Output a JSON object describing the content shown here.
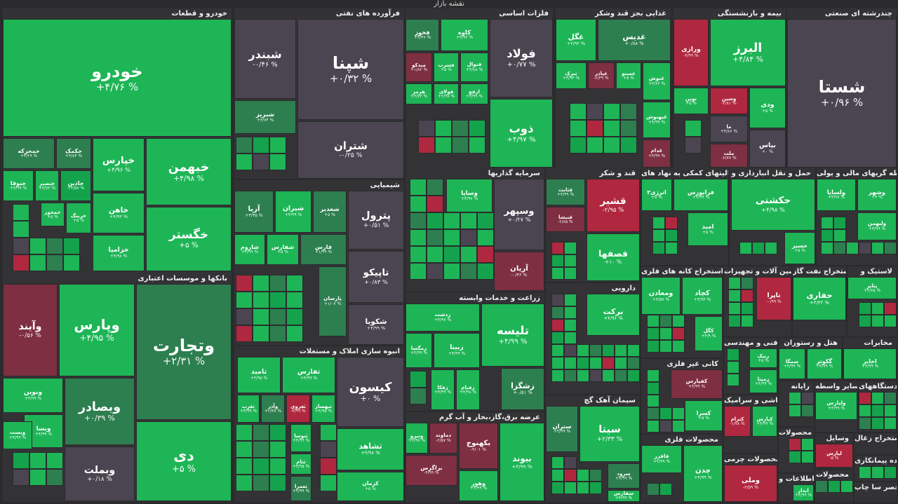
{
  "page_title": "نقشه بازار",
  "colors": {
    "up": "#1eb556",
    "up_dark": "#2d7f4f",
    "neutral": "#4a4550",
    "down": "#b0283f"
  },
  "sectors": [
    {
      "id": "s1",
      "name": "خودرو و قطعات",
      "tiles": [
        {
          "name": "خودرو",
          "value": "+۴/۷۶ %"
        },
        {
          "name": "خبهمن",
          "value": "+۴/۹۸ %"
        },
        {
          "name": "خگستر",
          "value": "+۵ %"
        },
        {
          "name": "خپارس",
          "value": "+۴/۹۶ %"
        },
        {
          "name": "خکمک",
          "value": "+۳/۸۳ %"
        },
        {
          "name": "خمحرکه",
          "value": "+۴/۲۹ %"
        },
        {
          "name": "خاهن",
          "value": "+۴/۹۲ %"
        },
        {
          "name": "خاذین",
          "value": "+۴/۵۷ %"
        },
        {
          "name": "خنصیر",
          "value": "+۳/۷۳ %"
        },
        {
          "name": "خنوقا",
          "value": "+۴/۹۹ %"
        },
        {
          "name": "خرینگ",
          "value": "+۵ %"
        },
        {
          "name": "خمحور",
          "value": "+۵ %"
        },
        {
          "name": "خزامیا",
          "value": "+۴/۹۸ %"
        }
      ]
    },
    {
      "id": "s2",
      "name": "فرآورده های نفتی",
      "tiles": [
        {
          "name": "شپنا",
          "value": "+۰/۳۲ %"
        },
        {
          "name": "شبندر",
          "value": "-۰/۴۶ %"
        },
        {
          "name": "شتران",
          "value": "-۰/۲۵ %"
        },
        {
          "name": "شبریز",
          "value": "+۳/۷۴ %"
        }
      ]
    },
    {
      "id": "s3",
      "name": "فلزات اساسی",
      "tiles": [
        {
          "name": "فولاد",
          "value": "+۰/۷۷ %"
        },
        {
          "name": "کاوه",
          "value": "+۴/۹۳ %"
        },
        {
          "name": "فخوز",
          "value": "+۳/۴۷ %"
        },
        {
          "name": "فنوال",
          "value": "+۴/۸۸ %"
        },
        {
          "name": "فسرب",
          "value": "+۵ %"
        },
        {
          "name": "میدکو",
          "value": "+۱/۸۲ %"
        },
        {
          "name": "ارفع",
          "value": "+۴/۹۹ %"
        },
        {
          "name": "فولای",
          "value": "+۲/۹۷ %"
        },
        {
          "name": "هرمز",
          "value": "+۳/۷۳ %"
        },
        {
          "name": "ذوب",
          "value": "+۴/۹۷ %"
        }
      ]
    },
    {
      "id": "s4",
      "name": "غذایی بجز قند وشکر",
      "tiles": [
        {
          "name": "غدیس",
          "value": "+۰/۸۸ %"
        },
        {
          "name": "غگل",
          "value": "+۲/۹۲ %"
        },
        {
          "name": "غنوش",
          "value": "+۴/۶۶ %"
        },
        {
          "name": "غمینو",
          "value": "+۵ %"
        },
        {
          "name": "غپاذر",
          "value": "-۲/۳۹ %"
        },
        {
          "name": "تبرک",
          "value": "+۴/۹۳ %"
        },
        {
          "name": "غبهنوش",
          "value": "+۴/۹۹ %"
        },
        {
          "name": "غدام",
          "value": "+۴/۹۹ %"
        }
      ]
    },
    {
      "id": "s5",
      "name": "بیمه و بازنشستگی",
      "tiles": [
        {
          "name": "البرز",
          "value": "+۴/۸۴ %"
        },
        {
          "name": "ورازی",
          "value": "-۳/۹۹ %"
        },
        {
          "name": "ودی",
          "value": "+۵ %"
        },
        {
          "name": "وسین",
          "value": "-۲/۸۱ %"
        },
        {
          "name": "نوین",
          "value": "+۵ %"
        },
        {
          "name": "ما",
          "value": "+۴/۸۶ %"
        },
        {
          "name": "بپاس",
          "value": "+۰ %"
        },
        {
          "name": "ملت",
          "value": "-۲/۷۷ %"
        }
      ]
    },
    {
      "id": "s6",
      "name": "چندرشته ای صنعتی",
      "tiles": [
        {
          "name": "شستا",
          "value": "+۰/۹۶ %"
        }
      ]
    },
    {
      "id": "s7",
      "name": "شیمیایی",
      "tiles": [
        {
          "name": "پترول",
          "value": "+۰/۵۱ %"
        },
        {
          "name": "شغدیر",
          "value": "+۵ %"
        },
        {
          "name": "شیران",
          "value": "+۴/۹۹ %"
        },
        {
          "name": "آریا",
          "value": "+۳/۳۵ %"
        },
        {
          "name": "تاپیکو",
          "value": "+۰/۸۳ %"
        },
        {
          "name": "فارس",
          "value": "+۱/۹۹ %"
        },
        {
          "name": "شفارس",
          "value": "+۵ %"
        },
        {
          "name": "شاروم",
          "value": "+۴/۹۹ %"
        },
        {
          "name": "پارسان",
          "value": "+۱/۰۷ %"
        },
        {
          "name": "شکویا",
          "value": "+۴/۹۹ %"
        }
      ]
    },
    {
      "id": "s8",
      "name": "سرمایه گذاریها",
      "tiles": [
        {
          "name": "وسپهر",
          "value": "+۰/۲۷ %"
        },
        {
          "name": "وساپا",
          "value": "+۴/۹۷ %"
        },
        {
          "name": "آریان",
          "value": "-۰/۳۶ %"
        }
      ]
    },
    {
      "id": "s9",
      "name": "قند و شکر",
      "tiles": [
        {
          "name": "قشیر",
          "value": "-۲/۹۵ %"
        },
        {
          "name": "قثابت",
          "value": "+۴/۹۹ %"
        },
        {
          "name": "قنیشا",
          "value": "-۲/۸۵ %"
        },
        {
          "name": "قصفها",
          "value": "+۱۰ %"
        }
      ]
    },
    {
      "id": "s10",
      "name": "فعالیتهای کمکی به نهاد های",
      "tiles": [
        {
          "name": "فرابورس",
          "value": "+۴/۹۹ %"
        },
        {
          "name": "انرژی۳",
          "value": "+۵ %"
        },
        {
          "name": "امید",
          "value": "+۵ %"
        }
      ]
    },
    {
      "id": "s11",
      "name": "حمل و نقل انبارداری و",
      "tiles": [
        {
          "name": "حکشتی",
          "value": "+۴/۹۸ %"
        },
        {
          "name": "حسیر",
          "value": "+۵ %"
        }
      ]
    },
    {
      "id": "s12",
      "name": "واسطه گریهای مالی و پولی",
      "tiles": [
        {
          "name": "وشهر",
          "value": "+۴ %"
        },
        {
          "name": "ولساپا",
          "value": "+۴/۹۷ %"
        },
        {
          "name": "ولبهمن",
          "value": "+۴/۹۹ %"
        }
      ]
    },
    {
      "id": "s13",
      "name": "بانکها و موسسات اعتباری",
      "tiles": [
        {
          "name": "وتجارت",
          "value": "+۲/۳۱ %"
        },
        {
          "name": "وپارس",
          "value": "+۴/۹۵ %"
        },
        {
          "name": "وآیند",
          "value": "-۰/۵۶ %"
        },
        {
          "name": "دی",
          "value": "+۵ %"
        },
        {
          "name": "وبصادر",
          "value": "+۰/۳۹ %"
        },
        {
          "name": "ونوین",
          "value": "+۴/۹۹ %"
        },
        {
          "name": "ویسا",
          "value": "+۴/۹۹ %"
        },
        {
          "name": "وبست",
          "value": "+۴/۹۹ %"
        },
        {
          "name": "وبملت",
          "value": "+۰/۱۸ %"
        }
      ]
    },
    {
      "id": "s14",
      "name": "انبوه سازی املاک و مستغلات",
      "tiles": [
        {
          "name": "کیسون",
          "value": "+۰ %"
        },
        {
          "name": "ثفارس",
          "value": "+۴/۹۹ %"
        },
        {
          "name": "ثامید",
          "value": "+۴/۹۵ %"
        },
        {
          "name": "ثبهساز",
          "value": "+۴/۹۵ %"
        },
        {
          "name": "ثغروی",
          "value": "-۳/۹۹ %"
        },
        {
          "name": "وآذر",
          "value": "+۲/۳۸ %"
        },
        {
          "name": "ثغرب",
          "value": "+۴/۹۹ %"
        },
        {
          "name": "ثشاهد",
          "value": "+۴/۹۸ %"
        },
        {
          "name": "ثنوسا",
          "value": "+۴/۹۹ %"
        },
        {
          "name": "ثتام",
          "value": "+۴/۹۵ %"
        },
        {
          "name": "ثعمرا",
          "value": "+۴/۹۹ %"
        },
        {
          "name": "کرمان",
          "value": "+۵ %"
        }
      ]
    },
    {
      "id": "s15",
      "name": "زراعت و خدمات وابسته",
      "tiles": [
        {
          "name": "تلیسه",
          "value": "+۴/۹۹ %"
        },
        {
          "name": "زدشت",
          "value": "+۴/۹۷ %"
        },
        {
          "name": "زبینا",
          "value": "+۴/۹۹ %"
        },
        {
          "name": "زمگسا",
          "value": "+۴/۹۹ %"
        },
        {
          "name": "زشگزا",
          "value": "+۰/۵۱ %"
        },
        {
          "name": "زقیام",
          "value": "+۴/۹۸ %"
        },
        {
          "name": "زفکا",
          "value": "+۴/۹۹ %"
        }
      ]
    },
    {
      "id": "s16",
      "name": "عرضه برق،گاز،بخار و آب گرم",
      "tiles": [
        {
          "name": "بیوند",
          "value": "+۴/۹۹ %"
        },
        {
          "name": "بکهنوج",
          "value": "-۲/۰۱ %"
        },
        {
          "name": "دماوند",
          "value": "-۲/۵۷ %"
        },
        {
          "name": "ونیرو",
          "value": "+۴/۹۷ %"
        },
        {
          "name": "بزاگرس",
          "value": "-۴/۹۹ %"
        },
        {
          "name": "وهور",
          "value": "+۴/۹۹ %"
        }
      ]
    },
    {
      "id": "s17",
      "name": "دارویی",
      "tiles": [
        {
          "name": "برکت",
          "value": "+۴/۹۶ %"
        }
      ]
    },
    {
      "id": "s18",
      "name": "سیمان آهک گچ",
      "tiles": [
        {
          "name": "سیتا",
          "value": "+۲/۳۳ %"
        },
        {
          "name": "ستران",
          "value": "+۴/۹۹ %"
        },
        {
          "name": "سرود",
          "value": "+۴/۹۹ %"
        },
        {
          "name": "سفارس",
          "value": "+۴/۹۹ %"
        }
      ]
    },
    {
      "id": "s19",
      "name": "استخراج کانه های فلزی",
      "tiles": [
        {
          "name": "کچاد",
          "value": "+۴/۹۳ %"
        },
        {
          "name": "ومعادن",
          "value": "+۳/۵۷ %"
        },
        {
          "name": "کگل",
          "value": "+۴/۹ %"
        }
      ]
    },
    {
      "id": "s20",
      "name": "ماشین آلات و تجهیزات",
      "tiles": [
        {
          "name": "تاپرا",
          "value": "-۰/۹۹ %"
        }
      ]
    },
    {
      "id": "s21",
      "name": "استخراج نفت گاز",
      "tiles": [
        {
          "name": "حفاری",
          "value": "+۴/۴۳ %"
        }
      ]
    },
    {
      "id": "s22",
      "name": "لاستیک و",
      "tiles": [
        {
          "name": "پتایر",
          "value": "+۴/۶۵ %"
        }
      ]
    },
    {
      "id": "s23",
      "name": "کانی غیر فلزی",
      "tiles": [
        {
          "name": "کفپارس",
          "value": "+۴/۹۹ %"
        },
        {
          "name": "کسرا",
          "value": "+۵ %"
        }
      ]
    },
    {
      "id": "s24",
      "name": "فنی و مهندسی",
      "tiles": [
        {
          "name": "رنیک",
          "value": "+۵ %"
        },
        {
          "name": "رمپنا",
          "value": "+۴/۹۹ %"
        }
      ]
    },
    {
      "id": "s25",
      "name": "هتل و رستوران",
      "tiles": [
        {
          "name": "گکوثر",
          "value": "+۴/۹۹ %"
        },
        {
          "name": "سمگا",
          "value": "+۴/۹۹ %"
        }
      ]
    },
    {
      "id": "s26",
      "name": "مخابرات",
      "tiles": [
        {
          "name": "اخابر",
          "value": "+۴/۹۹ %"
        }
      ]
    },
    {
      "id": "s27",
      "name": "محصولات فلزی",
      "tiles": [
        {
          "name": "چدن",
          "value": "+۴/۹۹ %"
        },
        {
          "name": "فافزر",
          "value": "+۴/۹۹ %"
        }
      ]
    },
    {
      "id": "s28",
      "name": "کاشی و سرامیک",
      "tiles": [
        {
          "name": "کپارس",
          "value": "+۴/۹۹ %"
        },
        {
          "name": "کترام",
          "value": "-۱/۷۸ %"
        }
      ]
    },
    {
      "id": "s29",
      "name": "محصولات چرمی",
      "tiles": [
        {
          "name": "وملی",
          "value": "-۲/۵۹ %"
        }
      ]
    },
    {
      "id": "s30",
      "name": "رایانه",
      "tiles": []
    },
    {
      "id": "s31",
      "name": "سایر واسطه",
      "tiles": [
        {
          "name": "ولپارس",
          "value": "+۴/۹۹ %"
        }
      ]
    },
    {
      "id": "s32",
      "name": "دستگاههای",
      "tiles": []
    },
    {
      "id": "s33",
      "name": "محصولات",
      "tiles": []
    },
    {
      "id": "s34",
      "name": "وسایل",
      "tiles": [
        {
          "name": "لپارس",
          "value": "-۵ %"
        }
      ]
    },
    {
      "id": "s35",
      "name": "استخراج زغال",
      "tiles": []
    },
    {
      "id": "s36",
      "name": "خرده پیمانکاری",
      "tiles": []
    },
    {
      "id": "s37",
      "name": "اطلاعات و",
      "tiles": [
        {
          "name": "ایدار",
          "value": "+۴/۹۹ %"
        }
      ]
    },
    {
      "id": "s38",
      "name": "محصولات",
      "tiles": []
    },
    {
      "id": "s39",
      "name": "ما ه محصر سا چاپ",
      "tiles": []
    }
  ]
}
